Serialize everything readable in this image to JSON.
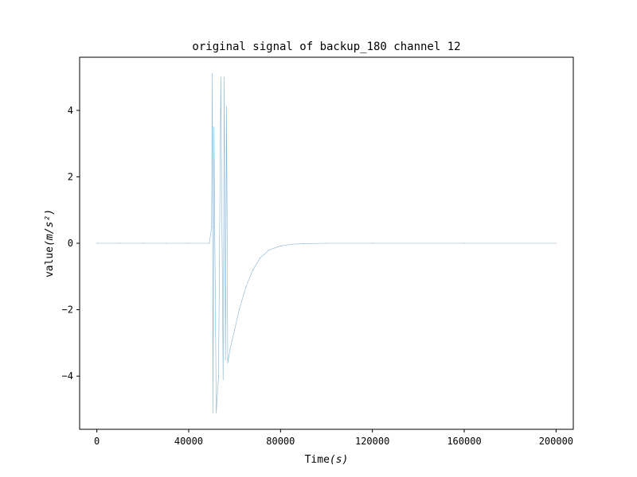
{
  "chart_data": {
    "type": "line",
    "title": "original signal of backup_180 channel 12",
    "xlabel": "Time",
    "xlabel_unit": "(s)",
    "ylabel": "value",
    "ylabel_unit": "(m/s²)",
    "xlim": [
      -7500,
      207500
    ],
    "ylim": [
      -5.6,
      5.6
    ],
    "xticks": [
      0,
      40000,
      80000,
      120000,
      160000,
      200000
    ],
    "yticks": [
      -4,
      -2,
      0,
      2,
      4
    ],
    "ytick_labels": [
      "−4",
      "−2",
      "0",
      "2",
      "4"
    ],
    "grid": false,
    "legend": "none",
    "line_color": "#1f77b4",
    "series": [
      {
        "x": [
          0,
          10000,
          20000,
          30000,
          40000,
          49000,
          50000,
          50300,
          50600,
          51000,
          52000,
          53000,
          54000,
          55000,
          55500,
          56000,
          56500,
          57000,
          58000,
          60000,
          62000,
          65000,
          68000,
          71000,
          75000,
          80000,
          85000,
          90000,
          100000,
          120000,
          160000,
          200000
        ],
        "y": [
          0,
          0,
          0,
          0,
          0,
          0,
          0.5,
          5.1,
          -5.1,
          3.5,
          -5.1,
          -4.0,
          5.0,
          -4.1,
          5.0,
          -3.5,
          4.1,
          -3.6,
          -3.2,
          -2.6,
          -2.0,
          -1.3,
          -0.8,
          -0.45,
          -0.2,
          -0.08,
          -0.03,
          -0.01,
          0,
          0,
          0,
          0
        ]
      }
    ]
  }
}
